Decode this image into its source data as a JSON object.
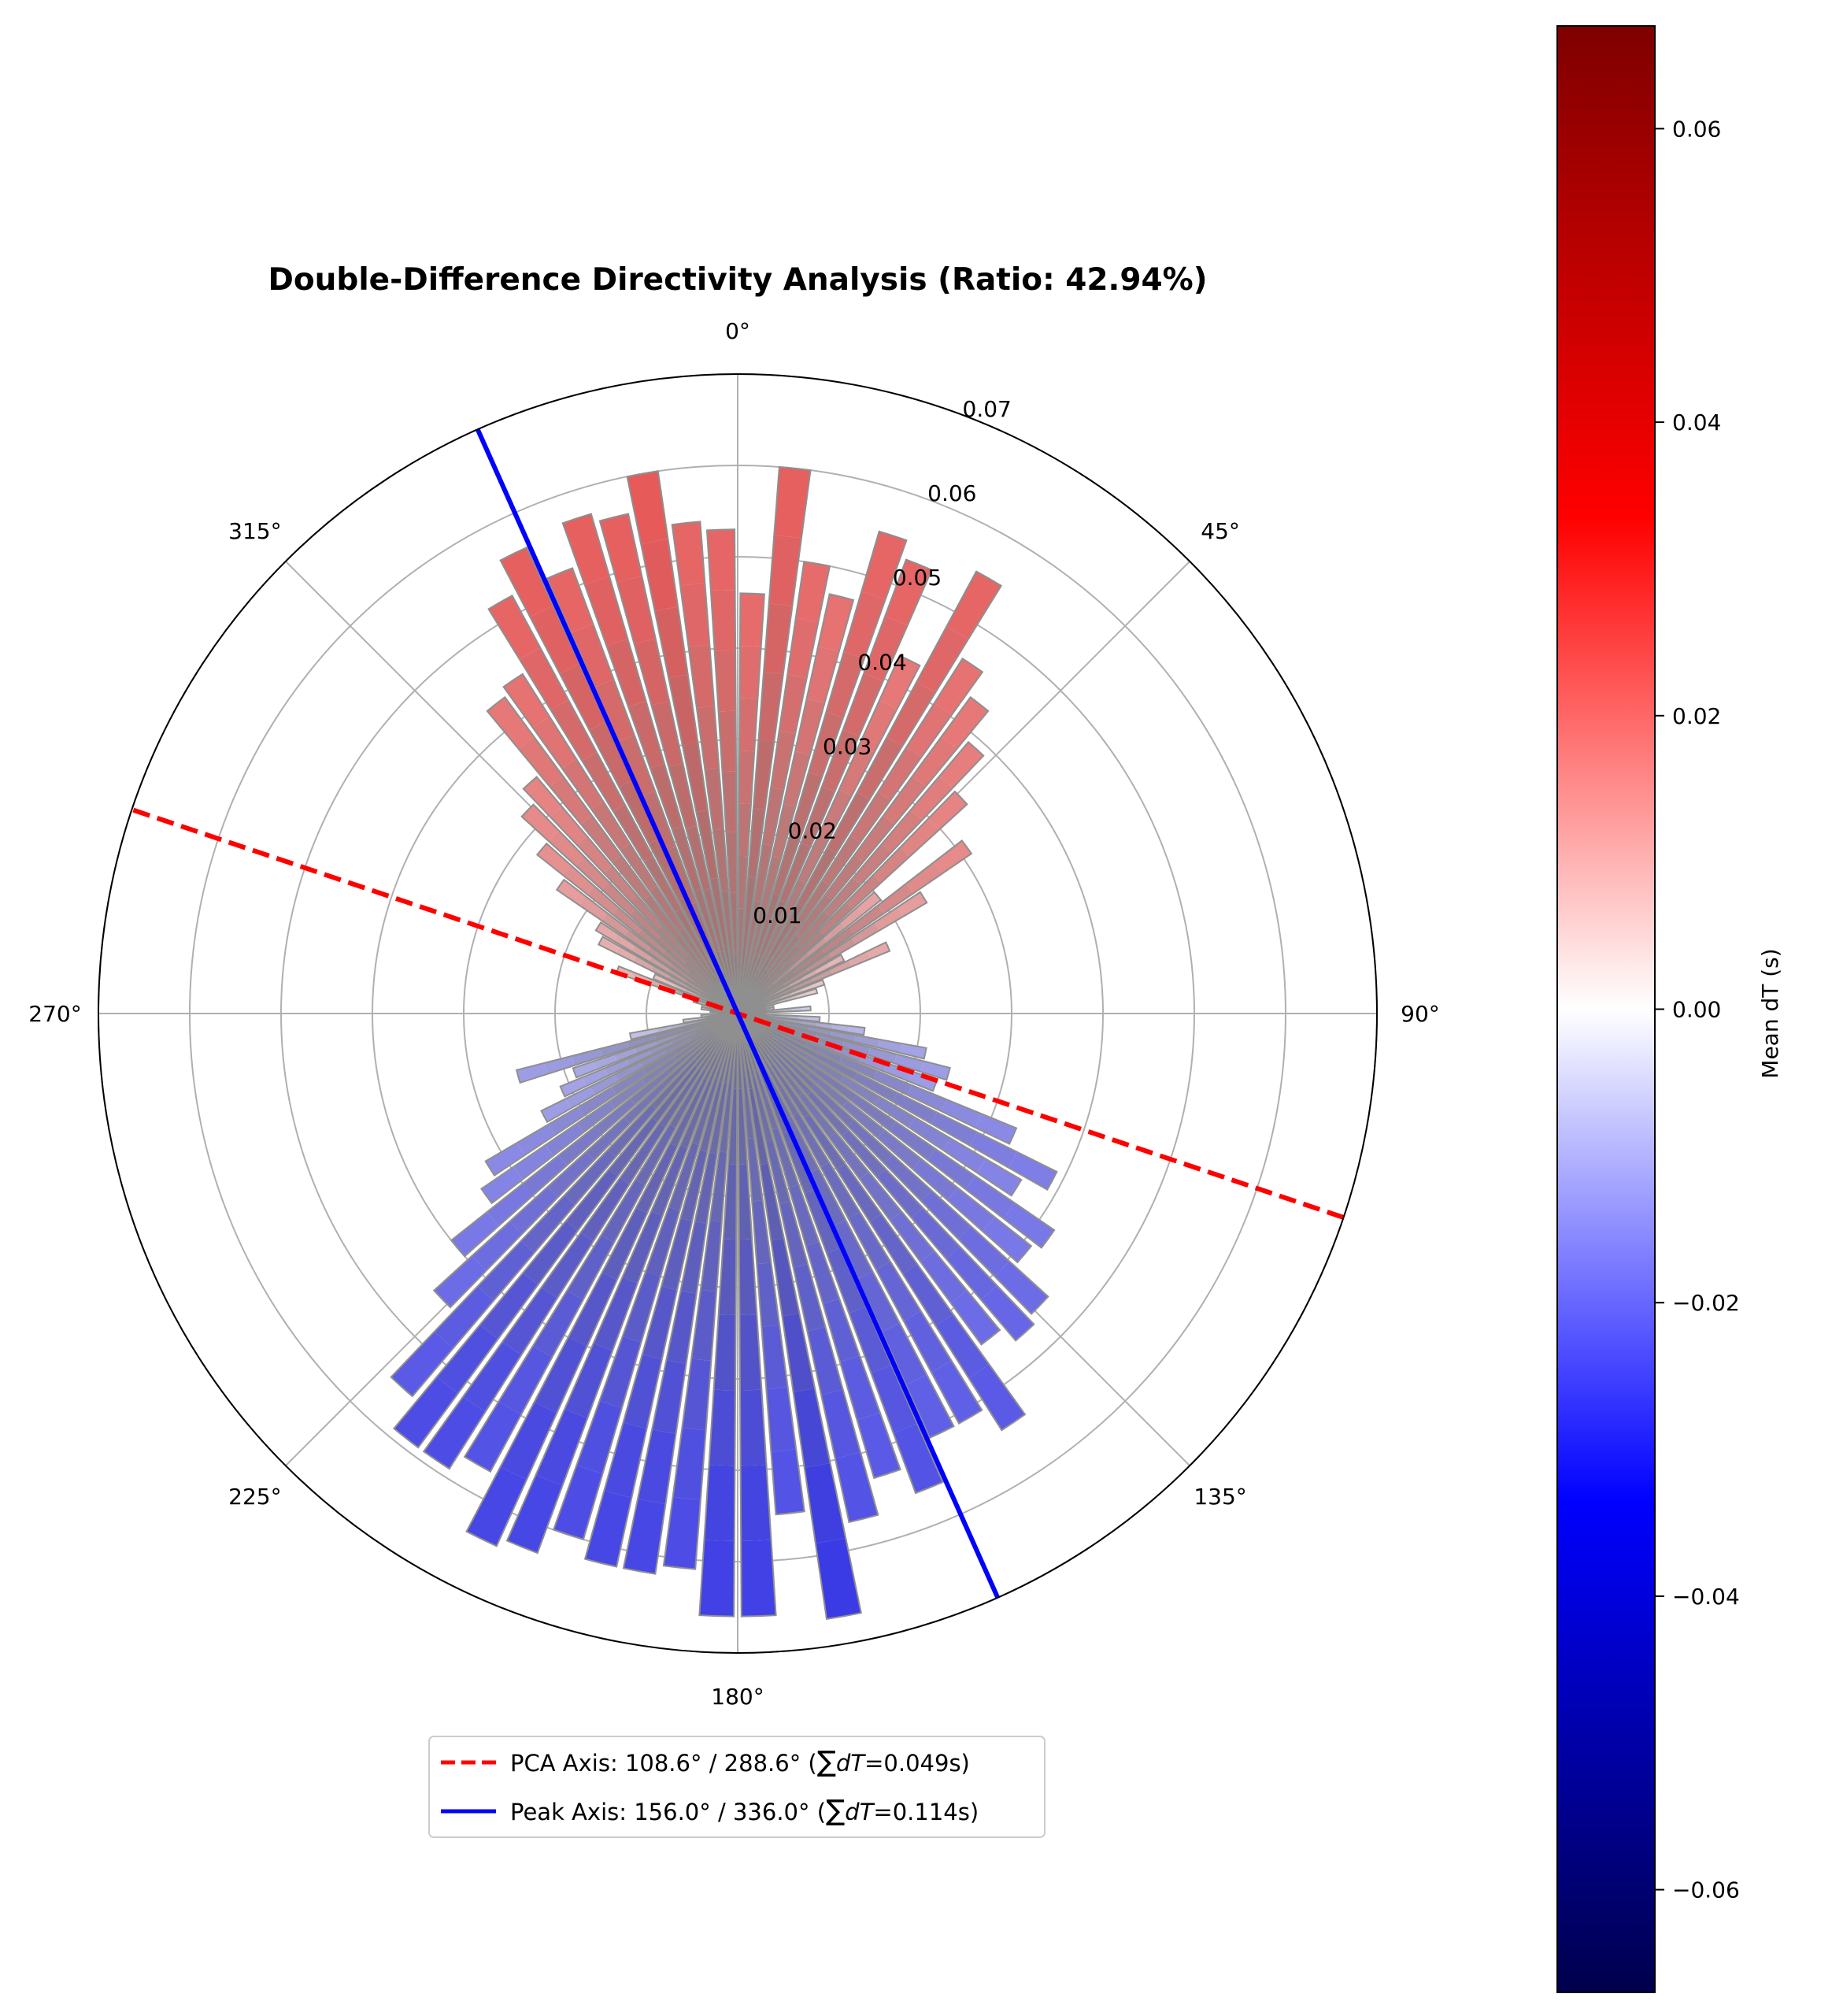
{
  "chart_data": {
    "type": "polar-bar",
    "title": "Double-Difference Directivity Analysis (Ratio: 42.94%)",
    "theta_zero": "north",
    "theta_direction": "clockwise",
    "theta_ticks": [
      "0°",
      "45°",
      "90°",
      "135°",
      "180°",
      "225°",
      "270°",
      "315°"
    ],
    "r_ticks": [
      "0.01",
      "0.02",
      "0.03",
      "0.04",
      "0.05",
      "0.06",
      "0.07"
    ],
    "r_range": [
      0,
      0.07
    ],
    "grid": true,
    "bin_width_deg": 4,
    "bin_centers_deg": [
      2,
      6,
      10,
      14,
      18,
      22,
      26,
      30,
      34,
      38,
      42,
      46,
      50,
      54,
      58,
      62,
      66,
      70,
      74,
      78,
      82,
      86,
      90,
      94,
      98,
      102,
      106,
      110,
      114,
      118,
      122,
      126,
      130,
      134,
      138,
      142,
      146,
      150,
      154,
      158,
      162,
      166,
      170,
      174,
      178,
      182,
      186,
      190,
      194,
      198,
      202,
      206,
      210,
      214,
      218,
      222,
      226,
      230,
      234,
      238,
      242,
      246,
      250,
      254,
      258,
      262,
      266,
      270,
      274,
      278,
      282,
      286,
      290,
      294,
      298,
      302,
      306,
      310,
      314,
      318,
      322,
      326,
      330,
      334,
      338,
      342,
      346,
      350,
      354,
      358
    ],
    "radii": [
      0.046,
      0.06,
      0.05,
      0.047,
      0.055,
      0.053,
      0.043,
      0.055,
      0.046,
      0.043,
      0.039,
      0.034,
      0.02,
      0.031,
      0.024,
      0.013,
      0.018,
      0.01,
      0.009,
      0.004,
      0.004,
      0.008,
      0.003,
      0.009,
      0.014,
      0.021,
      0.024,
      0.023,
      0.033,
      0.039,
      0.036,
      0.042,
      0.041,
      0.046,
      0.047,
      0.045,
      0.054,
      0.051,
      0.051,
      0.056,
      0.053,
      0.057,
      0.067,
      0.055,
      0.066,
      0.066,
      0.061,
      0.062,
      0.062,
      0.06,
      0.063,
      0.064,
      0.057,
      0.059,
      0.059,
      0.055,
      0.045,
      0.04,
      0.034,
      0.032,
      0.024,
      0.021,
      0.019,
      0.025,
      0.012,
      0.006,
      0.004,
      0.002,
      0.003,
      0.004,
      0.004,
      0.005,
      0.014,
      0.01,
      0.017,
      0.018,
      0.024,
      0.028,
      0.032,
      0.034,
      0.043,
      0.044,
      0.052,
      0.056,
      0.052,
      0.057,
      0.056,
      0.06,
      0.054,
      0.053
    ],
    "mean_dT": [
      0.02,
      0.022,
      0.02,
      0.019,
      0.021,
      0.021,
      0.018,
      0.021,
      0.019,
      0.018,
      0.017,
      0.016,
      0.011,
      0.015,
      0.012,
      0.008,
      0.01,
      0.005,
      0.004,
      0.0,
      -0.002,
      -0.004,
      -0.003,
      -0.006,
      -0.008,
      -0.011,
      -0.012,
      -0.012,
      -0.015,
      -0.017,
      -0.016,
      -0.018,
      -0.018,
      -0.02,
      -0.021,
      -0.02,
      -0.023,
      -0.022,
      -0.022,
      -0.024,
      -0.023,
      -0.024,
      -0.028,
      -0.024,
      -0.027,
      -0.027,
      -0.025,
      -0.026,
      -0.026,
      -0.025,
      -0.026,
      -0.026,
      -0.024,
      -0.025,
      -0.025,
      -0.023,
      -0.02,
      -0.018,
      -0.016,
      -0.015,
      -0.012,
      -0.011,
      -0.01,
      -0.012,
      -0.006,
      -0.003,
      -0.001,
      0.0,
      0.001,
      0.002,
      0.002,
      0.003,
      0.008,
      0.006,
      0.009,
      0.01,
      0.012,
      0.014,
      0.015,
      0.016,
      0.018,
      0.019,
      0.021,
      0.022,
      0.021,
      0.022,
      0.022,
      0.023,
      0.021,
      0.021
    ],
    "lines": [
      {
        "name": "PCA Axis: 108.6° / 288.6° (∑dT=0.049s)",
        "angles_deg": [
          108.6,
          288.6
        ],
        "color": "#ff0000",
        "style": "dashed"
      },
      {
        "name": "Peak Axis: 156.0° / 336.0° (∑dT=0.114s)",
        "angles_deg": [
          156.0,
          336.0
        ],
        "color": "#0000ff",
        "style": "solid"
      }
    ],
    "legend_position": "lower-center",
    "colorbar": {
      "label": "Mean dT (s)",
      "range": [
        -0.067,
        0.067
      ],
      "ticks": [
        "0.06",
        "0.04",
        "0.02",
        "0.00",
        "−0.02",
        "−0.04",
        "−0.06"
      ],
      "tick_values": [
        0.06,
        0.04,
        0.02,
        0.0,
        -0.02,
        -0.04,
        -0.06
      ],
      "colormap": "seismic"
    }
  },
  "legend": {
    "pca": {
      "prefix": "PCA Axis: 108.6° / 288.6° (",
      "sym": "∑",
      "var": "dT",
      "suffix": "=0.049s)"
    },
    "peak": {
      "prefix": "Peak Axis: 156.0° / 336.0° (",
      "sym": "∑",
      "var": "dT",
      "suffix": "=0.114s)"
    }
  },
  "colors": {
    "bar_edge": "#8f8f8f",
    "grid": "#b0b0b0",
    "pca": "#ff0000",
    "peak": "#0000ff"
  }
}
